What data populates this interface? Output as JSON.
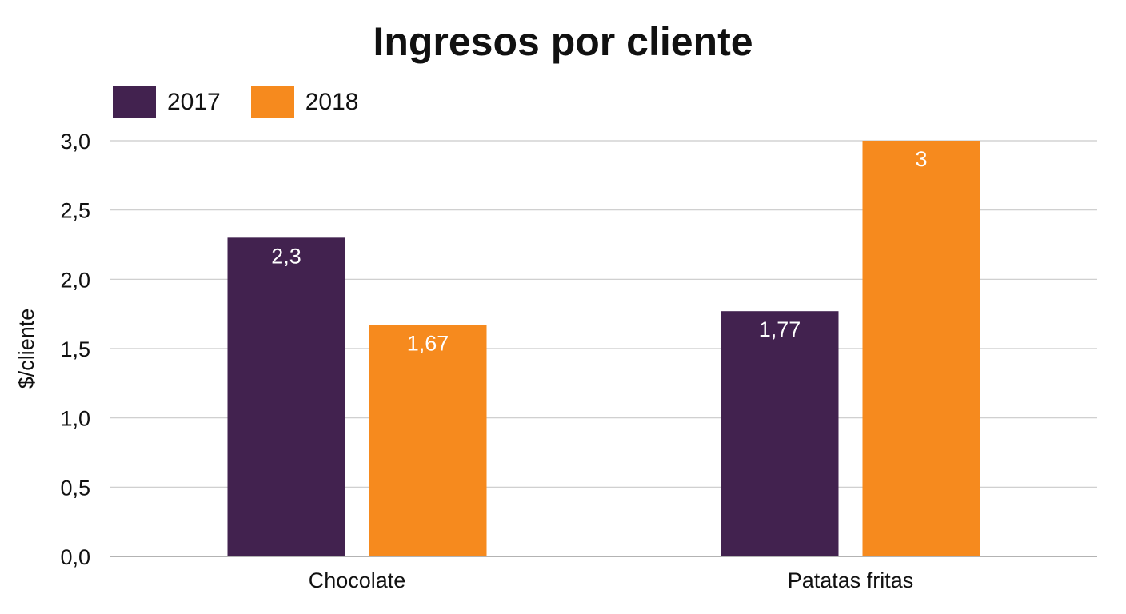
{
  "chart_data": {
    "type": "bar",
    "title": "Ingresos por cliente",
    "xlabel": "",
    "ylabel": "$/cliente",
    "categories": [
      "Chocolate",
      "Patatas fritas"
    ],
    "series": [
      {
        "name": "2017",
        "values": [
          2.3,
          1.77
        ],
        "labels": [
          "2,3",
          "1,77"
        ],
        "color": "#42224f"
      },
      {
        "name": "2018",
        "values": [
          1.67,
          3
        ],
        "labels": [
          "1,67",
          "3"
        ],
        "color": "#f68a1e"
      }
    ],
    "ylim": [
      0,
      3
    ],
    "yticks": [
      0,
      0.5,
      1,
      1.5,
      2,
      2.5,
      3
    ],
    "ytick_labels": [
      "0,0",
      "0,5",
      "1,0",
      "1,5",
      "2,0",
      "2,5",
      "3,0"
    ],
    "grid": true,
    "legend": "top-left"
  }
}
